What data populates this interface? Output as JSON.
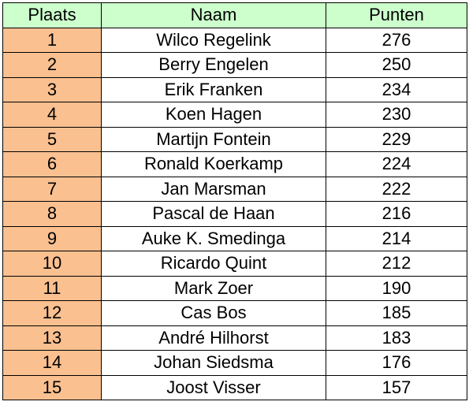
{
  "table": {
    "headers": {
      "plaats": "Plaats",
      "naam": "Naam",
      "punten": "Punten"
    },
    "rows": [
      {
        "plaats": "1",
        "naam": "Wilco Regelink",
        "punten": "276"
      },
      {
        "plaats": "2",
        "naam": "Berry Engelen",
        "punten": "250"
      },
      {
        "plaats": "3",
        "naam": "Erik Franken",
        "punten": "234"
      },
      {
        "plaats": "4",
        "naam": "Koen Hagen",
        "punten": "230"
      },
      {
        "plaats": "5",
        "naam": "Martijn Fontein",
        "punten": "229"
      },
      {
        "plaats": "6",
        "naam": "Ronald Koerkamp",
        "punten": "224"
      },
      {
        "plaats": "7",
        "naam": "Jan Marsman",
        "punten": "222"
      },
      {
        "plaats": "8",
        "naam": "Pascal de Haan",
        "punten": "216"
      },
      {
        "plaats": "9",
        "naam": "Auke K. Smedinga",
        "punten": "214"
      },
      {
        "plaats": "10",
        "naam": "Ricardo Quint",
        "punten": "212"
      },
      {
        "plaats": "11",
        "naam": "Mark Zoer",
        "punten": "190"
      },
      {
        "plaats": "12",
        "naam": "Cas Bos",
        "punten": "185"
      },
      {
        "plaats": "13",
        "naam": "André Hilhorst",
        "punten": "183"
      },
      {
        "plaats": "14",
        "naam": "Johan Siedsma",
        "punten": "176"
      },
      {
        "plaats": "15",
        "naam": "Joost Visser",
        "punten": "157"
      }
    ]
  },
  "colors": {
    "header_background": "#ccffcc",
    "plaats_background": "#fac090",
    "border": "#000000"
  }
}
